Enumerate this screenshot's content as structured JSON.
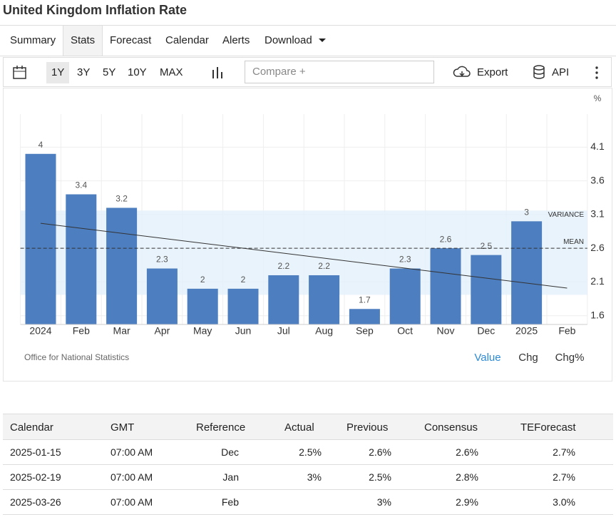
{
  "header": {
    "title": "United Kingdom Inflation Rate"
  },
  "tabs": {
    "items": [
      "Summary",
      "Stats",
      "Forecast",
      "Calendar",
      "Alerts",
      "Download"
    ],
    "active": 1
  },
  "toolbar": {
    "ranges": [
      "1Y",
      "3Y",
      "5Y",
      "10Y",
      "MAX"
    ],
    "active": 0,
    "compare": "Compare +",
    "export": "Export",
    "api": "API"
  },
  "chart_data": {
    "type": "bar",
    "unit": "%",
    "categories": [
      "2024",
      "Feb",
      "Mar",
      "Apr",
      "May",
      "Jun",
      "Jul",
      "Aug",
      "Sep",
      "Oct",
      "Nov",
      "Dec",
      "2025",
      "Feb"
    ],
    "values": [
      4,
      3.4,
      3.2,
      2.3,
      2,
      2,
      2.2,
      2.2,
      1.7,
      2.3,
      2.6,
      2.5,
      3,
      null
    ],
    "color": "#4d7ebf",
    "ylim": [
      1.47,
      4.59
    ],
    "yticks": [
      4.1,
      3.6,
      3.1,
      2.6,
      2.1,
      1.6
    ],
    "grid": true,
    "mean": 2.6,
    "mean_label": "MEAN",
    "variance_band": [
      1.91,
      3.16
    ],
    "variance_label": "VARIANCE",
    "trend": [
      2.97,
      2.01
    ],
    "source": "Office for National Statistics",
    "modes": [
      "Value",
      "Chg",
      "Chg%"
    ],
    "active_mode": 0
  },
  "table": {
    "header": [
      "Calendar",
      "GMT",
      "Reference",
      "Actual",
      "Previous",
      "Consensus",
      "TEForecast"
    ],
    "rows": [
      [
        "2025-01-15",
        "07:00 AM",
        "Dec",
        "2.5%",
        "2.6%",
        "2.6%",
        "2.7%"
      ],
      [
        "2025-02-19",
        "07:00 AM",
        "Jan",
        "3%",
        "2.5%",
        "2.8%",
        "2.7%"
      ],
      [
        "2025-03-26",
        "07:00 AM",
        "Feb",
        null,
        "3%",
        "2.9%",
        "3.0%"
      ]
    ]
  }
}
